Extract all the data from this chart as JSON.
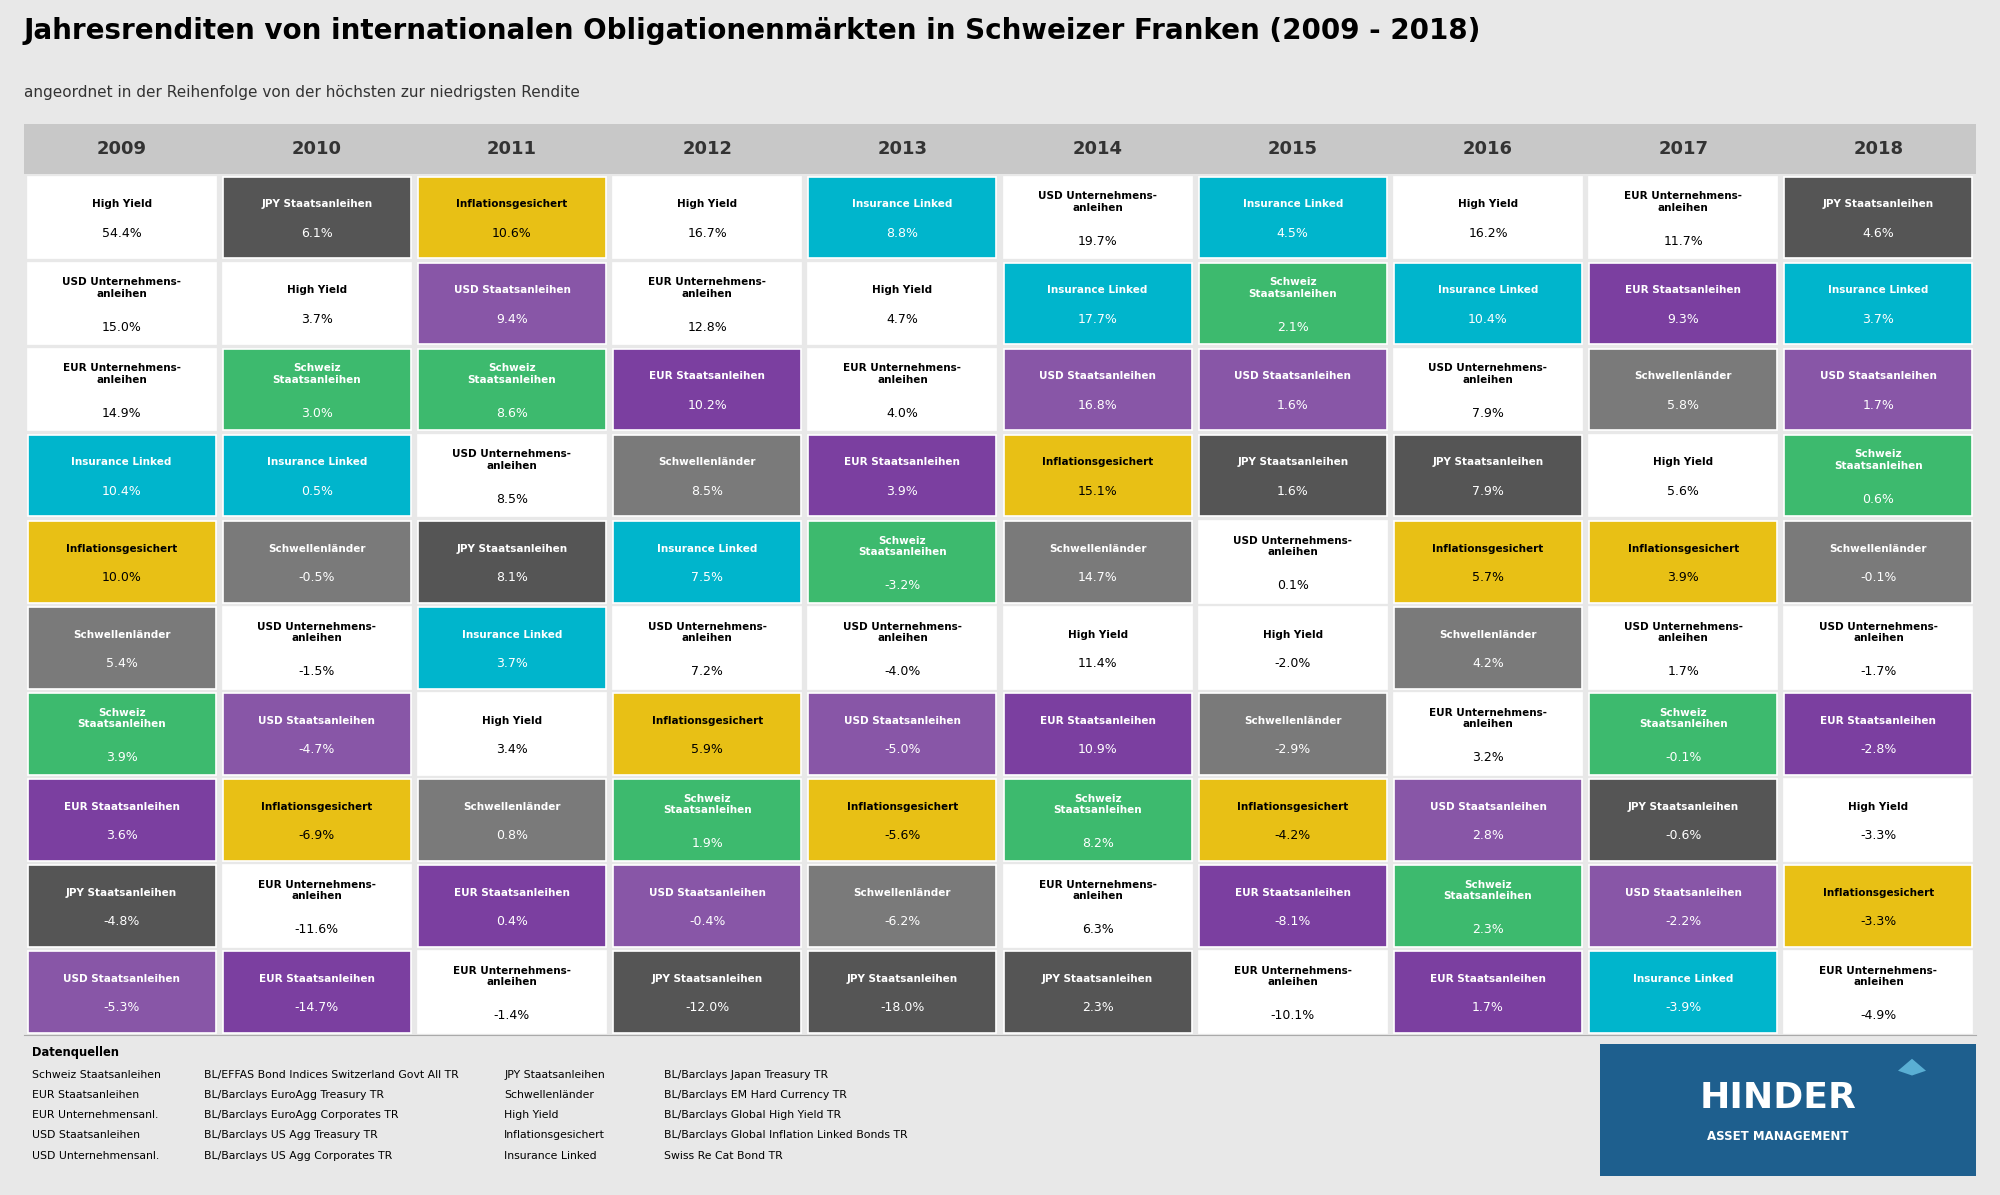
{
  "title": "Jahresrenditen von internationalen Obligationenmärkten in Schweizer Franken (2009 - 2018)",
  "subtitle": "angeordnet in der Reihenfolge von der höchsten zur niedrigsten Rendite",
  "years": [
    "2009",
    "2010",
    "2011",
    "2012",
    "2013",
    "2014",
    "2015",
    "2016",
    "2017",
    "2018"
  ],
  "colors": {
    "Schweiz Staatsanleihen": "#3dba6e",
    "EUR Staatsanleihen": "#7b3fa0",
    "EUR Unternehmensanleihen": "#d4006e",
    "USD Staatsanleihen": "#8856a7",
    "USD Unternehmensanleihen": "#1a237e",
    "JPY Staatsanleihen": "#555555",
    "Insurance Linked": "#00b5cc",
    "Inflationsgesichert": "#e8c015",
    "Schwellenländer": "#7a7a7a",
    "High Yield": "#ffffff"
  },
  "text_colors": {
    "Schweiz Staatsanleihen": "#ffffff",
    "EUR Staatsanleihen": "#ffffff",
    "EUR Unternehmensanleihen": "#ffffff",
    "USD Staatsanleihen": "#ffffff",
    "USD Unternehmensanleihen": "#ffffff",
    "JPY Staatsanleihen": "#ffffff",
    "Insurance Linked": "#ffffff",
    "Inflationsgesichert": "#000000",
    "Schwellenländer": "#ffffff",
    "High Yield": "#000000"
  },
  "grid": [
    [
      {
        "label": "High Yield",
        "value": "54.4%"
      },
      {
        "label": "USD Unternehmens-\nanleihen",
        "value": "15.0%"
      },
      {
        "label": "EUR Unternehmens-\nanleihen",
        "value": "14.9%"
      },
      {
        "label": "Insurance Linked",
        "value": "10.4%"
      },
      {
        "label": "Inflationsgesichert",
        "value": "10.0%"
      },
      {
        "label": "Schwellenländer",
        "value": "5.4%"
      },
      {
        "label": "Schweiz\nStaatsanleihen",
        "value": "3.9%"
      },
      {
        "label": "EUR Staatsanleihen",
        "value": "3.6%"
      },
      {
        "label": "JPY Staatsanleihen",
        "value": "-4.8%"
      },
      {
        "label": "USD Staatsanleihen",
        "value": "-5.3%"
      }
    ],
    [
      {
        "label": "JPY Staatsanleihen",
        "value": "6.1%"
      },
      {
        "label": "High Yield",
        "value": "3.7%"
      },
      {
        "label": "Schweiz\nStaatsanleihen",
        "value": "3.0%"
      },
      {
        "label": "Insurance Linked",
        "value": "0.5%"
      },
      {
        "label": "Schwellenländer",
        "value": "-0.5%"
      },
      {
        "label": "USD Unternehmens-\nanleihen",
        "value": "-1.5%"
      },
      {
        "label": "USD Staatsanleihen",
        "value": "-4.7%"
      },
      {
        "label": "Inflationsgesichert",
        "value": "-6.9%"
      },
      {
        "label": "EUR Unternehmens-\nanleihen",
        "value": "-11.6%"
      },
      {
        "label": "EUR Staatsanleihen",
        "value": "-14.7%"
      }
    ],
    [
      {
        "label": "Inflationsgesichert",
        "value": "10.6%"
      },
      {
        "label": "USD Staatsanleihen",
        "value": "9.4%"
      },
      {
        "label": "Schweiz\nStaatsanleihen",
        "value": "8.6%"
      },
      {
        "label": "USD Unternehmens-\nanleihen",
        "value": "8.5%"
      },
      {
        "label": "JPY Staatsanleihen",
        "value": "8.1%"
      },
      {
        "label": "Insurance Linked",
        "value": "3.7%"
      },
      {
        "label": "High Yield",
        "value": "3.4%"
      },
      {
        "label": "Schwellenländer",
        "value": "0.8%"
      },
      {
        "label": "EUR Staatsanleihen",
        "value": "0.4%"
      },
      {
        "label": "EUR Unternehmens-\nanleihen",
        "value": "-1.4%"
      }
    ],
    [
      {
        "label": "High Yield",
        "value": "16.7%"
      },
      {
        "label": "EUR Unternehmens-\nanleihen",
        "value": "12.8%"
      },
      {
        "label": "EUR Staatsanleihen",
        "value": "10.2%"
      },
      {
        "label": "Schwellenländer",
        "value": "8.5%"
      },
      {
        "label": "Insurance Linked",
        "value": "7.5%"
      },
      {
        "label": "USD Unternehmens-\nanleihen",
        "value": "7.2%"
      },
      {
        "label": "Inflationsgesichert",
        "value": "5.9%"
      },
      {
        "label": "Schweiz\nStaatsanleihen",
        "value": "1.9%"
      },
      {
        "label": "USD Staatsanleihen",
        "value": "-0.4%"
      },
      {
        "label": "JPY Staatsanleihen",
        "value": "-12.0%"
      }
    ],
    [
      {
        "label": "Insurance Linked",
        "value": "8.8%"
      },
      {
        "label": "High Yield",
        "value": "4.7%"
      },
      {
        "label": "EUR Unternehmens-\nanleihen",
        "value": "4.0%"
      },
      {
        "label": "EUR Staatsanleihen",
        "value": "3.9%"
      },
      {
        "label": "Schweiz\nStaatsanleihen",
        "value": "-3.2%"
      },
      {
        "label": "USD Unternehmens-\nanleihen",
        "value": "-4.0%"
      },
      {
        "label": "USD Staatsanleihen",
        "value": "-5.0%"
      },
      {
        "label": "Inflationsgesichert",
        "value": "-5.6%"
      },
      {
        "label": "Schwellenländer",
        "value": "-6.2%"
      },
      {
        "label": "JPY Staatsanleihen",
        "value": "-18.0%"
      }
    ],
    [
      {
        "label": "USD Unternehmens-\nanleihen",
        "value": "19.7%"
      },
      {
        "label": "Insurance Linked",
        "value": "17.7%"
      },
      {
        "label": "USD Staatsanleihen",
        "value": "16.8%"
      },
      {
        "label": "Inflationsgesichert",
        "value": "15.1%"
      },
      {
        "label": "Schwellenländer",
        "value": "14.7%"
      },
      {
        "label": "High Yield",
        "value": "11.4%"
      },
      {
        "label": "EUR Staatsanleihen",
        "value": "10.9%"
      },
      {
        "label": "Schweiz\nStaatsanleihen",
        "value": "8.2%"
      },
      {
        "label": "EUR Unternehmens-\nanleihen",
        "value": "6.3%"
      },
      {
        "label": "JPY Staatsanleihen",
        "value": "2.3%"
      }
    ],
    [
      {
        "label": "Insurance Linked",
        "value": "4.5%"
      },
      {
        "label": "Schweiz\nStaatsanleihen",
        "value": "2.1%"
      },
      {
        "label": "USD Staatsanleihen",
        "value": "1.6%"
      },
      {
        "label": "JPY Staatsanleihen",
        "value": "1.6%"
      },
      {
        "label": "USD Unternehmens-\nanleihen",
        "value": "0.1%"
      },
      {
        "label": "High Yield",
        "value": "-2.0%"
      },
      {
        "label": "Schwellenländer",
        "value": "-2.9%"
      },
      {
        "label": "Inflationsgesichert",
        "value": "-4.2%"
      },
      {
        "label": "EUR Staatsanleihen",
        "value": "-8.1%"
      },
      {
        "label": "EUR Unternehmens-\nanleihen",
        "value": "-10.1%"
      }
    ],
    [
      {
        "label": "High Yield",
        "value": "16.2%"
      },
      {
        "label": "Insurance Linked",
        "value": "10.4%"
      },
      {
        "label": "USD Unternehmens-\nanleihen",
        "value": "7.9%"
      },
      {
        "label": "JPY Staatsanleihen",
        "value": "7.9%"
      },
      {
        "label": "Inflationsgesichert",
        "value": "5.7%"
      },
      {
        "label": "Schwellenländer",
        "value": "4.2%"
      },
      {
        "label": "EUR Unternehmens-\nanleihen",
        "value": "3.2%"
      },
      {
        "label": "USD Staatsanleihen",
        "value": "2.8%"
      },
      {
        "label": "Schweiz\nStaatsanleihen",
        "value": "2.3%"
      },
      {
        "label": "EUR Staatsanleihen",
        "value": "1.7%"
      }
    ],
    [
      {
        "label": "EUR Unternehmens-\nanleihen",
        "value": "11.7%"
      },
      {
        "label": "EUR Staatsanleihen",
        "value": "9.3%"
      },
      {
        "label": "Schwellenländer",
        "value": "5.8%"
      },
      {
        "label": "High Yield",
        "value": "5.6%"
      },
      {
        "label": "Inflationsgesichert",
        "value": "3.9%"
      },
      {
        "label": "USD Unternehmens-\nanleihen",
        "value": "1.7%"
      },
      {
        "label": "Schweiz\nStaatsanleihen",
        "value": "-0.1%"
      },
      {
        "label": "JPY Staatsanleihen",
        "value": "-0.6%"
      },
      {
        "label": "USD Staatsanleihen",
        "value": "-2.2%"
      },
      {
        "label": "Insurance Linked",
        "value": "-3.9%"
      }
    ],
    [
      {
        "label": "JPY Staatsanleihen",
        "value": "4.6%"
      },
      {
        "label": "Insurance Linked",
        "value": "3.7%"
      },
      {
        "label": "USD Staatsanleihen",
        "value": "1.7%"
      },
      {
        "label": "Schweiz\nStaatsanleihen",
        "value": "0.6%"
      },
      {
        "label": "Schwellenländer",
        "value": "-0.1%"
      },
      {
        "label": "USD Unternehmens-\nanleihen",
        "value": "-1.7%"
      },
      {
        "label": "EUR Staatsanleihen",
        "value": "-2.8%"
      },
      {
        "label": "High Yield",
        "value": "-3.3%"
      },
      {
        "label": "Inflationsgesichert",
        "value": "-3.3%"
      },
      {
        "label": "EUR Unternehmens-\nanleihen",
        "value": "-4.9%"
      }
    ]
  ],
  "footer_sources_left": [
    [
      "Schweiz Staatsanleihen",
      "BL/EFFAS Bond Indices Switzerland Govt All TR"
    ],
    [
      "EUR Staatsanleihen",
      "BL/Barclays EuroAgg Treasury TR"
    ],
    [
      "EUR Unternehmensanl.",
      "BL/Barclays EuroAgg Corporates TR"
    ],
    [
      "USD Staatsanleihen",
      "BL/Barclays US Agg Treasury TR"
    ],
    [
      "USD Unternehmensanl.",
      "BL/Barclays US Agg Corporates TR"
    ]
  ],
  "footer_sources_right": [
    [
      "JPY Staatsanleihen",
      "BL/Barclays Japan Treasury TR"
    ],
    [
      "Schwellenländer",
      "BL/Barclays EM Hard Currency TR"
    ],
    [
      "High Yield",
      "BL/Barclays Global High Yield TR"
    ],
    [
      "Inflationsgesichert",
      "BL/Barclays Global Inflation Linked Bonds TR"
    ],
    [
      "Insurance Linked",
      "Swiss Re Cat Bond TR"
    ]
  ],
  "logo_bg": "#1e5f8e",
  "logo_text1": "HINDER",
  "logo_text2": "ASSET MANAGEMENT",
  "bg_color": "#e8e8e8",
  "header_bg": "#c8c8c8",
  "title_fontsize": 20,
  "subtitle_fontsize": 11,
  "year_fontsize": 13,
  "label_fontsize": 7.5,
  "value_fontsize": 9,
  "footer_fontsize": 7.8
}
